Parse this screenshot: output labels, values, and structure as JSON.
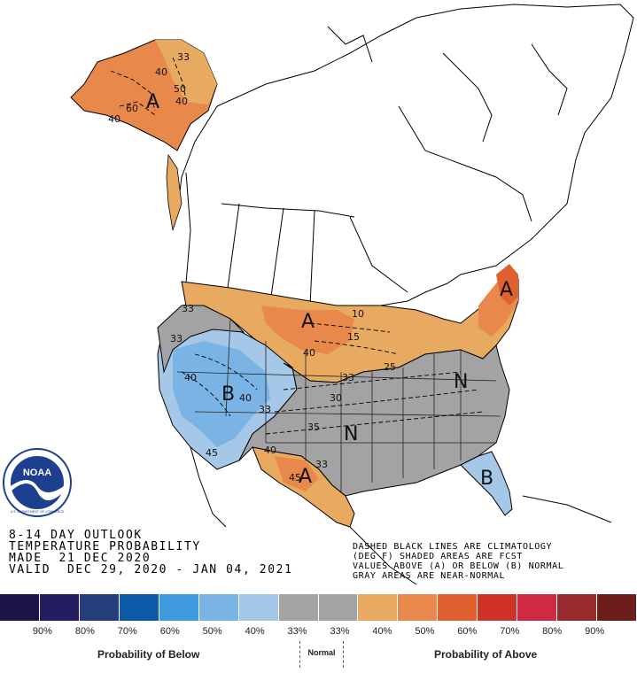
{
  "map": {
    "regions": [
      {
        "id": "alaska",
        "letter": "A",
        "category": "above"
      },
      {
        "id": "north-plains",
        "letter": "A",
        "category": "above"
      },
      {
        "id": "southwest",
        "letter": "B",
        "category": "below"
      },
      {
        "id": "south-plains",
        "letter": "A",
        "category": "above"
      },
      {
        "id": "central",
        "letter": "N",
        "category": "normal"
      },
      {
        "id": "east",
        "letter": "N",
        "category": "normal"
      },
      {
        "id": "florida",
        "letter": "B",
        "category": "below"
      },
      {
        "id": "new-england",
        "letter": "A",
        "category": "above"
      }
    ],
    "contour_labels": {
      "ak_33": "33",
      "ak_40a": "40",
      "ak_50": "50",
      "ak_60": "60",
      "ak_40b": "40",
      "ak_40c": "40",
      "wc_33": "33",
      "nw_33": "33",
      "sw_40": "40",
      "sw_b40": "40",
      "sw_33": "33",
      "sw_45": "45",
      "np_40": "40",
      "np_10": "10",
      "np_15": "15",
      "gl_25": "25",
      "c_33": "33",
      "c_30": "30",
      "c_35": "35",
      "sp_40": "40",
      "sp_33": "33",
      "sp_45": "45"
    }
  },
  "caption": {
    "line1": "8-14 DAY OUTLOOK",
    "line2": "TEMPERATURE PROBABILITY",
    "line3": "MADE  21 DEC 2020",
    "line4": "VALID  DEC 29, 2020 - JAN 04, 2021"
  },
  "note": {
    "line1": "DASHED BLACK LINES ARE CLIMATOLOGY",
    "line2": "(DEG F) SHADED AREAS ARE FCST",
    "line3": "VALUES ABOVE (A) OR BELOW (B) NORMAL",
    "line4": "GRAY AREAS ARE NEAR-NORMAL"
  },
  "legend": {
    "colors": [
      "#1b1446",
      "#241d62",
      "#263d7c",
      "#0d5ba8",
      "#3e9adc",
      "#7ab4e4",
      "#a6c8e8",
      "#a3a3a3",
      "#a3a3a3",
      "#e8aa60",
      "#e8884a",
      "#e0602f",
      "#d03228",
      "#d02a42",
      "#962a2c",
      "#6c1f1a"
    ],
    "ticks": [
      "90%",
      "80%",
      "70%",
      "60%",
      "50%",
      "40%",
      "33%",
      "33%",
      "40%",
      "50%",
      "60%",
      "70%",
      "80%",
      "90%"
    ],
    "below_label": "Probability of Below",
    "normal_label": "Normal",
    "above_label": "Probability of Above"
  },
  "logo": {
    "text": "NOAA",
    "ring_text": "U.S. DEPARTMENT OF COMMERCE"
  }
}
